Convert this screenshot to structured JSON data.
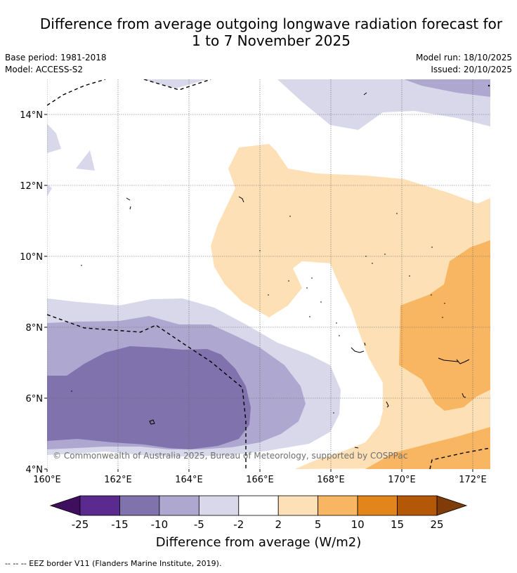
{
  "title_line1": "Difference from average outgoing longwave radiation forecast for",
  "title_line2": "1 to 7 November 2025",
  "base_period": "Base period: 1981-2018",
  "model": "Model: ACCESS-S2",
  "model_run": "Model run: 18/10/2025",
  "issued": "Issued: 20/10/2025",
  "lon_labels": [
    "160°E",
    "162°E",
    "164°E",
    "166°E",
    "168°E",
    "170°E",
    "172°E"
  ],
  "lat_labels": [
    "14°N",
    "12°N",
    "10°N",
    "8°N",
    "6°N",
    "4°N"
  ],
  "copyright": "© Commonwealth of Australia 2025, Bureau of Meteorology, supported by COSPPac",
  "colorbar": {
    "ticks": [
      "-25",
      "-15",
      "-10",
      "-5",
      "-2",
      "2",
      "5",
      "10",
      "15",
      "25"
    ],
    "colors": [
      "#3d0f5e",
      "#5b2a8f",
      "#7f72ad",
      "#aea8d1",
      "#d9d8eb",
      "#ffffff",
      "#fde0b5",
      "#f9b662",
      "#e2861b",
      "#b35806",
      "#7f3b08"
    ],
    "label": "Difference from average (W/m2)"
  },
  "footnote": "--  --  -- EEZ border V11 (Flanders Marine Institute, 2019)."
}
